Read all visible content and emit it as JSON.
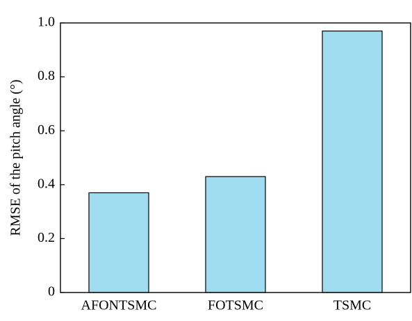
{
  "chart_data": {
    "type": "bar",
    "y_label": "RMSE of the pitch angle (°)",
    "categories": [
      "AFONTSMC",
      "FOTSMC",
      "TSMC"
    ],
    "values": [
      0.37,
      0.43,
      0.97
    ],
    "color": "#a0dcf0",
    "ylim": [
      0,
      1
    ],
    "yticks": [
      0,
      0.2,
      0.4,
      0.6,
      0.8,
      {
        "value": 1,
        "label": "1.0"
      }
    ],
    "grid": false
  }
}
